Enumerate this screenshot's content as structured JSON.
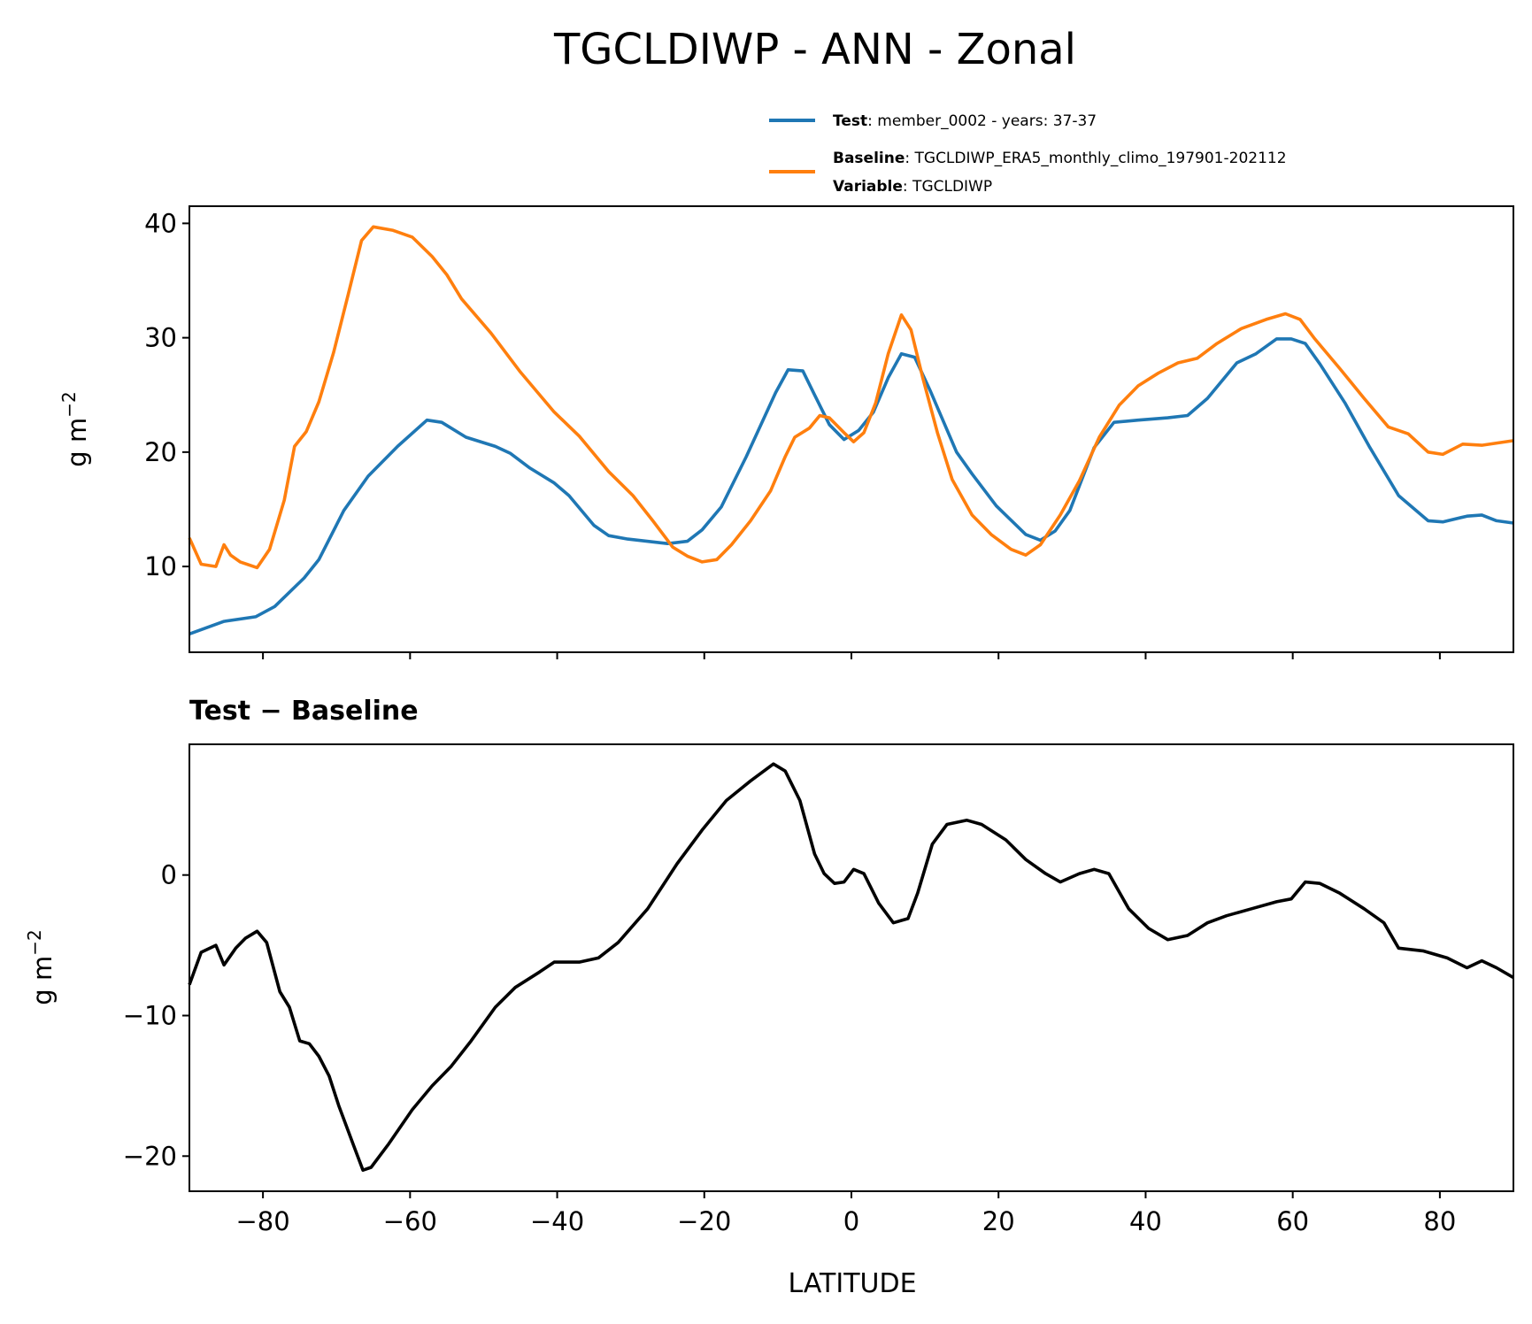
{
  "chart_data": [
    {
      "type": "line",
      "title": "TGCLDIWP - ANN - Zonal",
      "xlabel": "",
      "ylabel": "g m",
      "ylabel_exp": "−2",
      "xlim": [
        -90,
        90
      ],
      "ylim": [
        2.5,
        41.5
      ],
      "xticks": [
        -80,
        -60,
        -40,
        -20,
        0,
        20,
        40,
        60,
        80
      ],
      "yticks": [
        10,
        20,
        30,
        40
      ],
      "ytick_labels": [
        "10",
        "20",
        "30",
        "40"
      ],
      "grid": false,
      "legend_position": "above-top-right",
      "legend": [
        {
          "bold": "Test",
          "text": ": member_0002 - years: 37-37",
          "color": "#1f77b4"
        },
        {
          "bold": "Baseline",
          "text": ": TGCLDIWP_ERA5_monthly_climo_197901-202112",
          "bold2": "Variable",
          "text2": ": TGCLDIWP",
          "color": "#ff7f0e"
        }
      ],
      "series": [
        {
          "name": "Test",
          "color": "#1f77b4",
          "x": [
            -90,
            -85.3,
            -81,
            -78.4,
            -74.4,
            -72.4,
            -69,
            -65.7,
            -61.7,
            -57.7,
            -55.7,
            -52.4,
            -48.4,
            -46.4,
            -43.7,
            -40.4,
            -38.4,
            -35,
            -33,
            -30.4,
            -25,
            -22.3,
            -20.3,
            -17.7,
            -14.3,
            -10.3,
            -8.6,
            -6.6,
            -5,
            -3,
            -1,
            1,
            3,
            5,
            6.8,
            8.6,
            10.7,
            14.3,
            16.4,
            19.7,
            23.7,
            25.7,
            27.7,
            29.7,
            33,
            35.7,
            39,
            43,
            45.7,
            48.4,
            52.4,
            55,
            57.8,
            59.8,
            61.7,
            63.7,
            67.1,
            70.4,
            74.4,
            78.4,
            80.4,
            83.7,
            85.7,
            87.7,
            90
          ],
          "y": [
            4.1,
            5.2,
            5.6,
            6.5,
            9,
            10.6,
            14.9,
            17.9,
            20.5,
            22.8,
            22.6,
            21.3,
            20.5,
            19.9,
            18.6,
            17.3,
            16.2,
            13.6,
            12.7,
            12.4,
            12.0,
            12.2,
            13.2,
            15.2,
            19.6,
            25.2,
            27.2,
            27.1,
            25,
            22.4,
            21.1,
            21.9,
            23.5,
            26.5,
            28.6,
            28.3,
            25.4,
            20,
            18.1,
            15.3,
            12.8,
            12.3,
            13.1,
            14.9,
            20.4,
            22.6,
            22.8,
            23,
            23.2,
            24.7,
            27.8,
            28.6,
            29.9,
            29.9,
            29.5,
            27.7,
            24.3,
            20.5,
            16.2,
            14,
            13.9,
            14.4,
            14.5,
            14,
            13.8
          ]
        },
        {
          "name": "Baseline",
          "color": "#ff7f0e",
          "x": [
            -90,
            -88.4,
            -86.4,
            -85.3,
            -84.4,
            -83.1,
            -80.8,
            -79.1,
            -77.1,
            -75.7,
            -74.1,
            -72.4,
            -70.4,
            -68.4,
            -66.6,
            -65,
            -62.4,
            -59.7,
            -57,
            -55,
            -53,
            -49,
            -45,
            -40.4,
            -37,
            -33,
            -29.7,
            -27,
            -24.3,
            -22.3,
            -20.3,
            -18.3,
            -16.3,
            -13.7,
            -11,
            -9,
            -7.7,
            -5.7,
            -4.3,
            -3,
            -1,
            0.3,
            1.7,
            3.3,
            5,
            6.8,
            8.1,
            9.7,
            11.7,
            13.7,
            16.4,
            19,
            21.7,
            23.7,
            25.7,
            28.4,
            31,
            33.7,
            36.4,
            39,
            41.7,
            44.4,
            47,
            49.7,
            53,
            56.4,
            59,
            61,
            63,
            66.4,
            69.7,
            73,
            75.7,
            78.4,
            80.4,
            83.1,
            85.7,
            90
          ],
          "y": [
            12.5,
            10.2,
            10,
            11.9,
            11,
            10.4,
            9.9,
            11.5,
            15.8,
            20.5,
            21.8,
            24.4,
            28.7,
            33.8,
            38.5,
            39.7,
            39.4,
            38.8,
            37.1,
            35.5,
            33.4,
            30.4,
            27,
            23.5,
            21.4,
            18.3,
            16.2,
            14,
            11.7,
            10.9,
            10.4,
            10.6,
            11.9,
            14,
            16.6,
            19.6,
            21.3,
            22.1,
            23.2,
            23,
            21.7,
            20.9,
            21.7,
            24.3,
            28.6,
            32,
            30.7,
            26.5,
            21.7,
            17.6,
            14.5,
            12.8,
            11.5,
            11,
            11.9,
            14.5,
            17.5,
            21.3,
            24.1,
            25.8,
            26.9,
            27.8,
            28.2,
            29.5,
            30.8,
            31.6,
            32.1,
            31.6,
            29.9,
            27.3,
            24.7,
            22.2,
            21.6,
            20,
            19.8,
            20.7,
            20.6,
            21
          ]
        }
      ]
    },
    {
      "type": "line",
      "title": "Test − Baseline",
      "xlabel": "LATITUDE",
      "ylabel": "g m",
      "ylabel_exp": "−2",
      "xlim": [
        -90,
        90
      ],
      "ylim": [
        -22.5,
        9.3
      ],
      "xticks": [
        -80,
        -60,
        -40,
        -20,
        0,
        20,
        40,
        60,
        80
      ],
      "xtick_labels": [
        "−80",
        "−60",
        "−40",
        "−20",
        "0",
        "20",
        "40",
        "60",
        "80"
      ],
      "yticks": [
        -20,
        -10,
        0
      ],
      "ytick_labels": [
        "−20",
        "−10",
        "0"
      ],
      "grid": false,
      "series": [
        {
          "name": "Test - Baseline",
          "color": "#000000",
          "x": [
            -90,
            -88.4,
            -86.4,
            -85.3,
            -83.7,
            -82.4,
            -80.8,
            -79.5,
            -77.7,
            -76.4,
            -75,
            -73.7,
            -72.4,
            -71,
            -69.7,
            -67.7,
            -66.4,
            -65.3,
            -63,
            -59.7,
            -57,
            -54.4,
            -51.7,
            -48.4,
            -45.7,
            -42.4,
            -40.4,
            -37,
            -34.4,
            -31.7,
            -27.7,
            -23.7,
            -20.3,
            -17,
            -13.7,
            -10.6,
            -9,
            -7,
            -5,
            -3.7,
            -2.3,
            -1,
            0.3,
            1.7,
            3.7,
            5.7,
            7.7,
            9,
            11,
            13,
            15.7,
            17.7,
            21,
            23.7,
            26.4,
            28.4,
            31,
            33,
            35,
            37.7,
            40.4,
            43,
            45.7,
            48.4,
            51,
            54.4,
            57.8,
            59.8,
            61.7,
            63.7,
            66.4,
            69.7,
            72.4,
            74.4,
            77.7,
            81,
            83.7,
            85.7,
            87.7,
            90
          ],
          "y": [
            -7.8,
            -5.5,
            -5,
            -6.4,
            -5.2,
            -4.5,
            -4,
            -4.8,
            -8.3,
            -9.4,
            -11.8,
            -12,
            -12.9,
            -14.3,
            -16.4,
            -19.2,
            -21,
            -20.8,
            -19.2,
            -16.7,
            -15,
            -13.6,
            -11.8,
            -9.4,
            -8,
            -6.9,
            -6.2,
            -6.2,
            -5.9,
            -4.8,
            -2.4,
            0.8,
            3.2,
            5.3,
            6.7,
            7.9,
            7.4,
            5.3,
            1.5,
            0.1,
            -0.6,
            -0.5,
            0.4,
            0.1,
            -2,
            -3.4,
            -3.1,
            -1.3,
            2.2,
            3.6,
            3.9,
            3.6,
            2.5,
            1.1,
            0.1,
            -0.5,
            0.1,
            0.4,
            0.1,
            -2.4,
            -3.8,
            -4.6,
            -4.3,
            -3.4,
            -2.9,
            -2.4,
            -1.9,
            -1.7,
            -0.5,
            -0.6,
            -1.3,
            -2.4,
            -3.4,
            -5.2,
            -5.4,
            -5.9,
            -6.6,
            -6.1,
            -6.6,
            -7.3
          ]
        }
      ]
    }
  ]
}
